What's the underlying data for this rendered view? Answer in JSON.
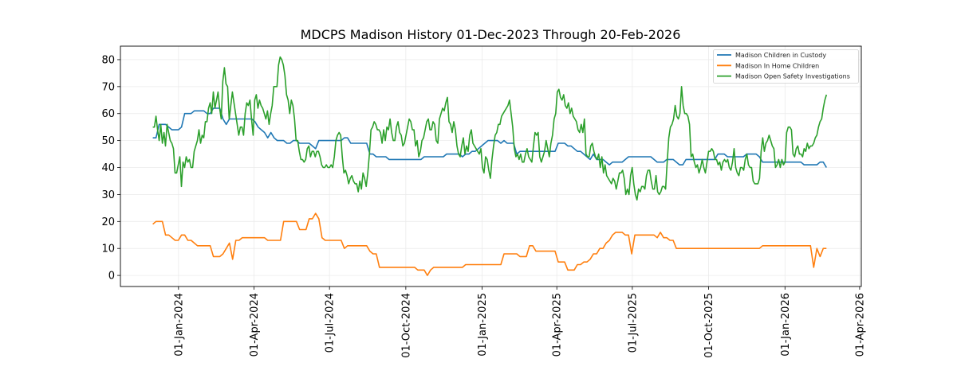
{
  "chart_data": {
    "type": "line",
    "title": "MDCPS Madison History 01-Dec-2023 Through 20-Feb-2026",
    "xlabel": "",
    "ylabel": "",
    "xlim": [
      "2023-10-23",
      "2026-04-03"
    ],
    "ylim": [
      -4.1,
      85
    ],
    "grid": true,
    "legend_position": "top-right",
    "y_ticks": [
      0,
      10,
      20,
      30,
      40,
      50,
      60,
      70,
      80
    ],
    "y_tick_labels": [
      "0",
      "10",
      "20",
      "30",
      "40",
      "50",
      "60",
      "70",
      "80"
    ],
    "x_ticks": [
      "2024-01-01",
      "2024-04-01",
      "2024-07-01",
      "2024-10-01",
      "2025-01-01",
      "2025-04-01",
      "2025-07-01",
      "2025-10-01",
      "2026-01-01",
      "2026-04-01"
    ],
    "x_tick_labels": [
      "01-Jan-2024",
      "01-Apr-2024",
      "01-Jul-2024",
      "01-Oct-2024",
      "01-Jan-2025",
      "01-Apr-2025",
      "01-Jul-2025",
      "01-Oct-2025",
      "01-Jan-2026",
      "01-Apr-2026"
    ],
    "series": [
      {
        "name": "Madison Children in Custody",
        "color": "#1f77b4",
        "start_date": "2023-12-01",
        "end_date": "2026-02-20",
        "sampling": "evenly spaced between start_date and end_date",
        "values": [
          51,
          51,
          56,
          56,
          56,
          55,
          54,
          54,
          54,
          55,
          60,
          60,
          60,
          61,
          61,
          61,
          61,
          60,
          60,
          62,
          62,
          62,
          58,
          56,
          58,
          58,
          58,
          58,
          58,
          58,
          58,
          58,
          57,
          55,
          54,
          53,
          51,
          53,
          51,
          50,
          50,
          50,
          49,
          49,
          50,
          50,
          49,
          49,
          49,
          49,
          48,
          47,
          50,
          50,
          50,
          50,
          50,
          50,
          50,
          50,
          51,
          51,
          49,
          49,
          49,
          49,
          49,
          49,
          45,
          45,
          44,
          44,
          44,
          44,
          43,
          43,
          43,
          43,
          43,
          43,
          43,
          43,
          43,
          43,
          43,
          44,
          44,
          44,
          44,
          44,
          44,
          44,
          45,
          45,
          45,
          45,
          45,
          44,
          45,
          45,
          46,
          46,
          47,
          48,
          49,
          50,
          50,
          50,
          50,
          49,
          50,
          49,
          49,
          49,
          45,
          46,
          46,
          46,
          46,
          46,
          46,
          46,
          46,
          46,
          46,
          46,
          46,
          49,
          49,
          49,
          48,
          48,
          47,
          46,
          46,
          45,
          44,
          43,
          45,
          43,
          43,
          43,
          42,
          41,
          42,
          42,
          42,
          42,
          43,
          44,
          44,
          44,
          44,
          44,
          44,
          44,
          44,
          43,
          42,
          42,
          42,
          43,
          43,
          43,
          42,
          41,
          41,
          43,
          43,
          43,
          43,
          43,
          43,
          43,
          43,
          43,
          43,
          45,
          45,
          45,
          44,
          44,
          44,
          44,
          44,
          44,
          45,
          45,
          45,
          45,
          44,
          42,
          42,
          42,
          42,
          42,
          42,
          42,
          42,
          42,
          42,
          42,
          42,
          42,
          41,
          41,
          41,
          41,
          41,
          42,
          42,
          40
        ]
      },
      {
        "name": "Madison In Home Children",
        "color": "#ff7f0e",
        "start_date": "2023-12-01",
        "end_date": "2026-02-20",
        "sampling": "evenly spaced between start_date and end_date",
        "values": [
          19,
          20,
          20,
          20,
          15,
          15,
          14,
          13,
          13,
          15,
          15,
          13,
          13,
          12,
          11,
          11,
          11,
          11,
          11,
          7,
          7,
          7,
          8,
          10,
          12,
          6,
          13,
          13,
          14,
          14,
          14,
          14,
          14,
          14,
          14,
          14,
          13,
          13,
          13,
          13,
          13,
          20,
          20,
          20,
          20,
          20,
          17,
          17,
          17,
          21,
          21,
          23,
          21,
          14,
          13,
          13,
          13,
          13,
          13,
          13,
          10,
          11,
          11,
          11,
          11,
          11,
          11,
          11,
          9,
          8,
          8,
          3,
          3,
          3,
          3,
          3,
          3,
          3,
          3,
          3,
          3,
          3,
          3,
          2,
          2,
          2,
          0,
          2,
          3,
          3,
          3,
          3,
          3,
          3,
          3,
          3,
          3,
          3,
          4,
          4,
          4,
          4,
          4,
          4,
          4,
          4,
          4,
          4,
          4,
          4,
          8,
          8,
          8,
          8,
          8,
          7,
          7,
          7,
          11,
          11,
          9,
          9,
          9,
          9,
          9,
          9,
          9,
          5,
          5,
          5,
          2,
          2,
          2,
          4,
          4,
          5,
          5,
          6,
          8,
          8,
          10,
          10,
          12,
          13,
          15,
          16,
          16,
          16,
          15,
          15,
          8,
          15,
          15,
          15,
          15,
          15,
          15,
          15,
          14,
          16,
          14,
          14,
          13,
          13,
          10,
          10,
          10,
          10,
          10,
          10,
          10,
          10,
          10,
          10,
          10,
          10,
          10,
          10,
          10,
          10,
          10,
          10,
          10,
          10,
          10,
          10,
          10,
          10,
          10,
          10,
          10,
          11,
          11,
          11,
          11,
          11,
          11,
          11,
          11,
          11,
          11,
          11,
          11,
          11,
          11,
          11,
          11,
          3,
          10,
          7,
          10,
          10
        ]
      },
      {
        "name": "Madison Open Safety Investigations",
        "color": "#2ca02c",
        "start_date": "2023-12-01",
        "end_date": "2026-02-20",
        "sampling": "evenly spaced between start_date and end_date",
        "values": [
          55,
          55,
          59,
          54,
          50,
          56,
          49,
          53,
          48,
          56,
          53,
          50,
          49,
          47,
          38,
          38,
          41,
          44,
          33,
          42,
          40,
          44,
          42,
          43,
          40,
          40,
          46,
          48,
          50,
          54,
          49,
          52,
          51,
          57,
          57,
          62,
          64,
          60,
          68,
          62,
          65,
          68,
          62,
          58,
          72,
          77,
          71,
          70,
          58,
          63,
          68,
          64,
          60,
          56,
          52,
          55,
          55,
          52,
          60,
          64,
          63,
          65,
          58,
          52,
          65,
          67,
          62,
          65,
          63,
          62,
          60,
          58,
          61,
          56,
          60,
          63,
          70,
          70,
          70,
          78,
          81,
          80,
          78,
          74,
          67,
          65,
          60,
          65,
          63,
          58,
          50,
          50,
          46,
          43,
          43,
          42,
          43,
          47,
          48,
          44,
          46,
          46,
          44,
          46,
          46,
          44,
          41,
          40,
          40,
          41,
          40,
          40,
          41,
          40,
          44,
          50,
          52,
          53,
          52,
          44,
          38,
          39,
          37,
          34,
          36,
          37,
          35,
          34,
          34,
          31,
          35,
          32,
          38,
          36,
          33,
          38,
          45,
          54,
          55,
          57,
          56,
          54,
          54,
          53,
          49,
          54,
          50,
          55,
          54,
          58,
          53,
          50,
          50,
          55,
          57,
          53,
          52,
          48,
          49,
          52,
          55,
          58,
          57,
          54,
          54,
          48,
          50,
          44,
          46,
          50,
          51,
          54,
          57,
          58,
          54,
          54,
          57,
          56,
          50,
          49,
          58,
          60,
          62,
          61,
          64,
          66,
          57,
          56,
          53,
          57,
          54,
          48,
          45,
          44,
          48,
          51,
          45,
          48,
          46,
          52,
          54,
          49,
          48,
          47,
          46,
          45,
          47,
          40,
          38,
          44,
          43,
          39,
          36,
          43,
          48,
          52,
          53,
          56,
          56,
          59,
          60,
          61,
          62,
          63,
          65,
          60,
          55,
          47,
          44,
          45,
          43,
          45,
          42,
          42,
          45,
          47,
          44,
          43,
          42,
          48,
          53,
          52,
          53,
          44,
          42,
          44,
          46,
          50,
          47,
          44,
          49,
          52,
          58,
          60,
          68,
          69,
          66,
          65,
          67,
          63,
          62,
          64,
          60,
          62,
          59,
          58,
          57,
          54,
          53,
          56,
          53,
          58,
          45,
          44,
          44,
          48,
          49,
          46,
          44,
          43,
          45,
          40,
          44,
          38,
          41,
          37,
          36,
          35,
          34,
          36,
          35,
          32,
          35,
          38,
          38,
          39,
          36,
          30,
          32,
          30,
          37,
          40,
          34,
          30,
          28,
          32,
          31,
          33,
          33,
          32,
          37,
          39,
          39,
          35,
          32,
          32,
          37,
          31,
          30,
          31,
          33,
          33,
          32,
          42,
          51,
          55,
          56,
          58,
          63,
          59,
          58,
          60,
          70,
          63,
          60,
          60,
          59,
          56,
          44,
          45,
          42,
          40,
          41,
          38,
          40,
          43,
          40,
          38,
          42,
          46,
          46,
          47,
          46,
          43,
          43,
          41,
          42,
          39,
          42,
          43,
          42,
          43,
          40,
          39,
          42,
          47,
          40,
          38,
          37,
          40,
          40,
          39,
          43,
          45,
          41,
          40,
          40,
          35,
          34,
          34,
          34,
          36,
          46,
          51,
          46,
          49,
          50,
          52,
          50,
          48,
          47,
          40,
          41,
          43,
          40,
          43,
          41,
          42,
          53,
          55,
          55,
          54,
          45,
          44,
          47,
          48,
          45,
          45,
          44,
          47,
          46,
          49,
          47,
          48,
          48,
          49,
          51,
          52,
          55,
          57,
          58,
          62,
          65,
          67
        ]
      }
    ]
  }
}
